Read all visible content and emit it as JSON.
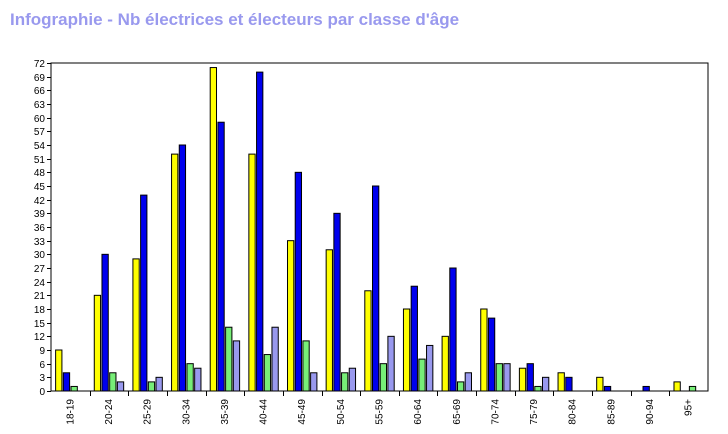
{
  "chart_data": {
    "type": "bar",
    "title": "Infographie - Nb électrices et électeurs par classe d'âge",
    "categories": [
      "18-19",
      "20-24",
      "25-29",
      "30-34",
      "35-39",
      "40-44",
      "45-49",
      "50-54",
      "55-59",
      "60-64",
      "65-69",
      "70-74",
      "75-79",
      "80-84",
      "85-89",
      "90-94",
      "95+"
    ],
    "series": [
      {
        "color": "#ffff00",
        "values": [
          9,
          21,
          29,
          52,
          71,
          52,
          33,
          31,
          22,
          18,
          12,
          18,
          5,
          4,
          3,
          0,
          2
        ]
      },
      {
        "color": "#0000ee",
        "values": [
          4,
          30,
          43,
          54,
          59,
          70,
          48,
          39,
          45,
          23,
          27,
          16,
          6,
          3,
          1,
          1,
          0
        ]
      },
      {
        "color": "#77ee77",
        "values": [
          1,
          4,
          2,
          6,
          14,
          8,
          11,
          4,
          6,
          7,
          2,
          6,
          1,
          0,
          0,
          0,
          1
        ]
      },
      {
        "color": "#9999ee",
        "values": [
          0,
          2,
          3,
          5,
          11,
          14,
          4,
          5,
          12,
          10,
          4,
          6,
          3,
          0,
          0,
          0,
          0
        ]
      }
    ],
    "ylim": [
      0,
      72
    ],
    "yticks": [
      0,
      3,
      6,
      9,
      12,
      15,
      18,
      21,
      24,
      27,
      30,
      33,
      36,
      39,
      42,
      45,
      48,
      51,
      54,
      57,
      60,
      63,
      66,
      69,
      72
    ],
    "xlabel": "",
    "ylabel": "",
    "grid": false
  }
}
